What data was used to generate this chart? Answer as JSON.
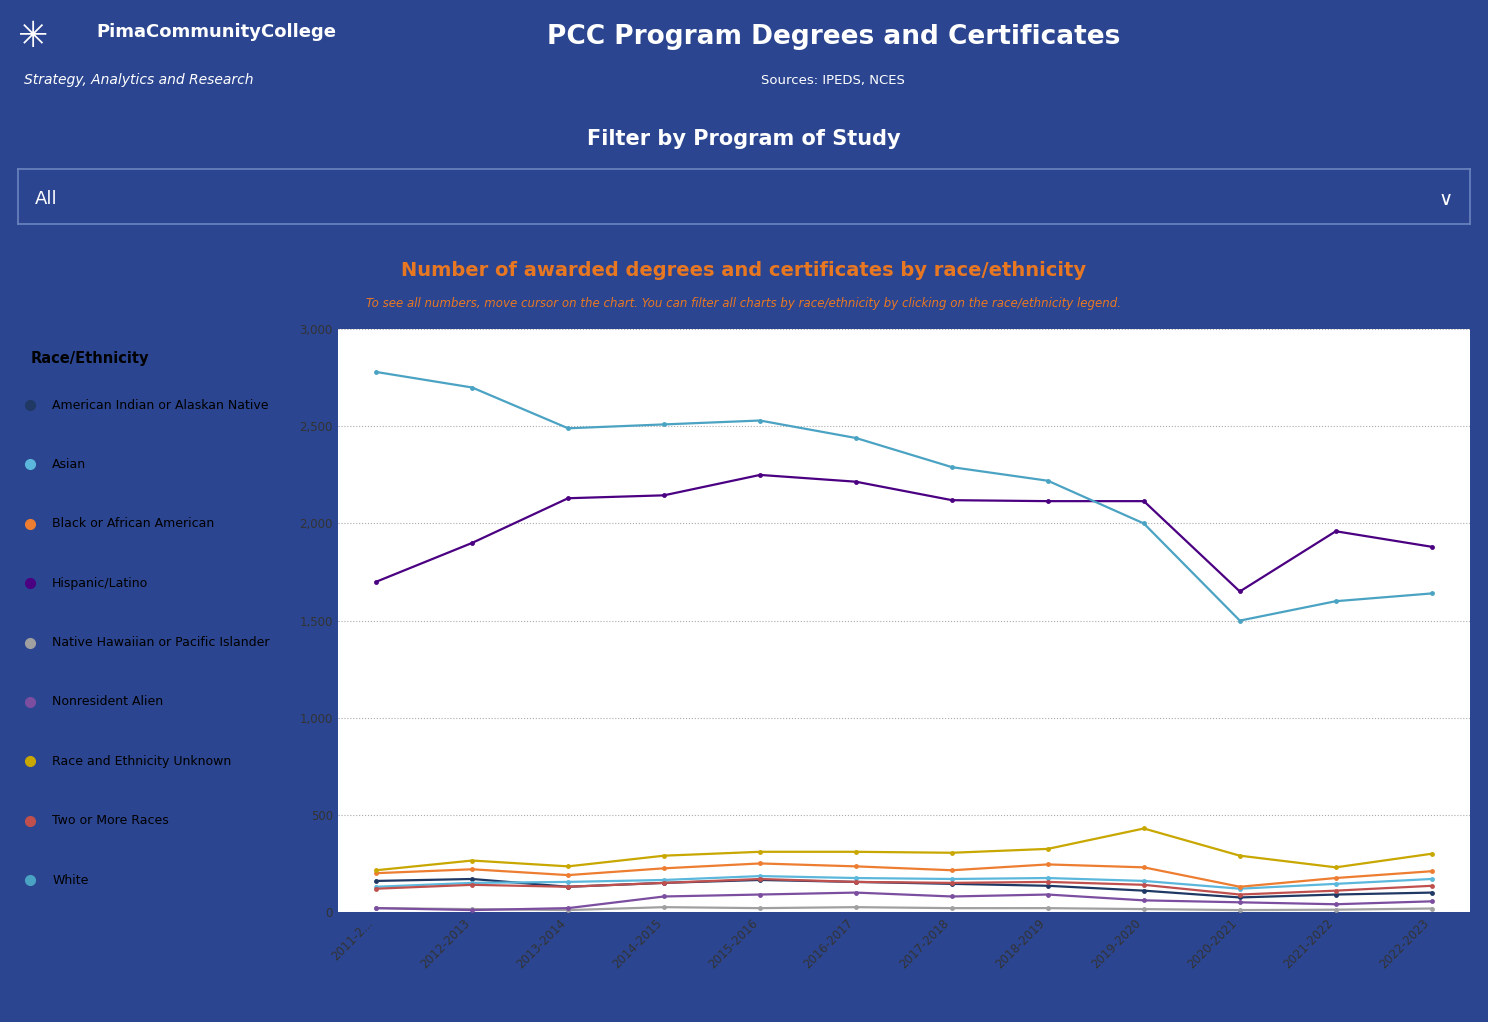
{
  "title_main": "PCC Program Degrees and Certificates",
  "title_sub": "Sources: IPEDS, NCES",
  "college_name": "PimaCommunityCollege",
  "dept_name": "Strategy, Analytics and Research",
  "filter_label": "Filter by Program of Study",
  "filter_value": "All",
  "chart_title": "Number of awarded degrees and certificates by race/ethnicity",
  "chart_subtitle": "To see all numbers, move cursor on the chart. You can filter all charts by race/ethnicity by clicking on the race/ethnicity legend.",
  "legend_title": "Race/Ethnicity",
  "x_labels": [
    "2011-2...",
    "2012-2013",
    "2013-2014",
    "2014-2015",
    "2015-2016",
    "2016-2017",
    "2017-2018",
    "2018-2019",
    "2019-2020",
    "2020-2021",
    "2021-2022",
    "2022-2023"
  ],
  "series": [
    {
      "name": "American Indian or Alaskan Native",
      "color": "#1F3864",
      "values": [
        160,
        170,
        130,
        150,
        165,
        155,
        145,
        135,
        110,
        75,
        90,
        100
      ]
    },
    {
      "name": "Asian",
      "color": "#5BB7DB",
      "values": [
        130,
        150,
        155,
        165,
        185,
        175,
        170,
        175,
        160,
        120,
        145,
        170
      ]
    },
    {
      "name": "Black or African American",
      "color": "#ED7D31",
      "values": [
        200,
        220,
        190,
        225,
        250,
        235,
        215,
        245,
        230,
        130,
        175,
        210
      ]
    },
    {
      "name": "Hispanic/Latino",
      "color": "#4B0082",
      "values": [
        1700,
        1900,
        2130,
        2145,
        2250,
        2215,
        2120,
        2115,
        2115,
        1650,
        1960,
        1880
      ]
    },
    {
      "name": "Native Hawaiian or Pacific Islander",
      "color": "#A0A0A0",
      "values": [
        20,
        15,
        10,
        25,
        20,
        25,
        20,
        20,
        15,
        10,
        12,
        18
      ]
    },
    {
      "name": "Nonresident Alien",
      "color": "#7B4EA0",
      "values": [
        20,
        10,
        20,
        80,
        90,
        100,
        80,
        90,
        60,
        50,
        40,
        55
      ]
    },
    {
      "name": "Race and Ethnicity Unknown",
      "color": "#C8A700",
      "values": [
        215,
        265,
        235,
        290,
        310,
        310,
        305,
        325,
        430,
        290,
        230,
        300
      ]
    },
    {
      "name": "Two or More Races",
      "color": "#C0504D",
      "values": [
        120,
        140,
        130,
        150,
        170,
        155,
        150,
        155,
        140,
        90,
        110,
        135
      ]
    },
    {
      "name": "White",
      "color": "#4BA3C3",
      "values": [
        2780,
        2700,
        2490,
        2510,
        2530,
        2440,
        2290,
        2220,
        2000,
        1500,
        1600,
        1640
      ]
    }
  ],
  "ylim": [
    0,
    3000
  ],
  "yticks": [
    0,
    500,
    1000,
    1500,
    2000,
    2500,
    3000
  ],
  "orange_color": "#E87722",
  "bg_color": "#2B4590",
  "chart_bg": "#FFFFFF",
  "filter_border_color": "#6B84C0",
  "header_line_color": "#FFFFFF"
}
